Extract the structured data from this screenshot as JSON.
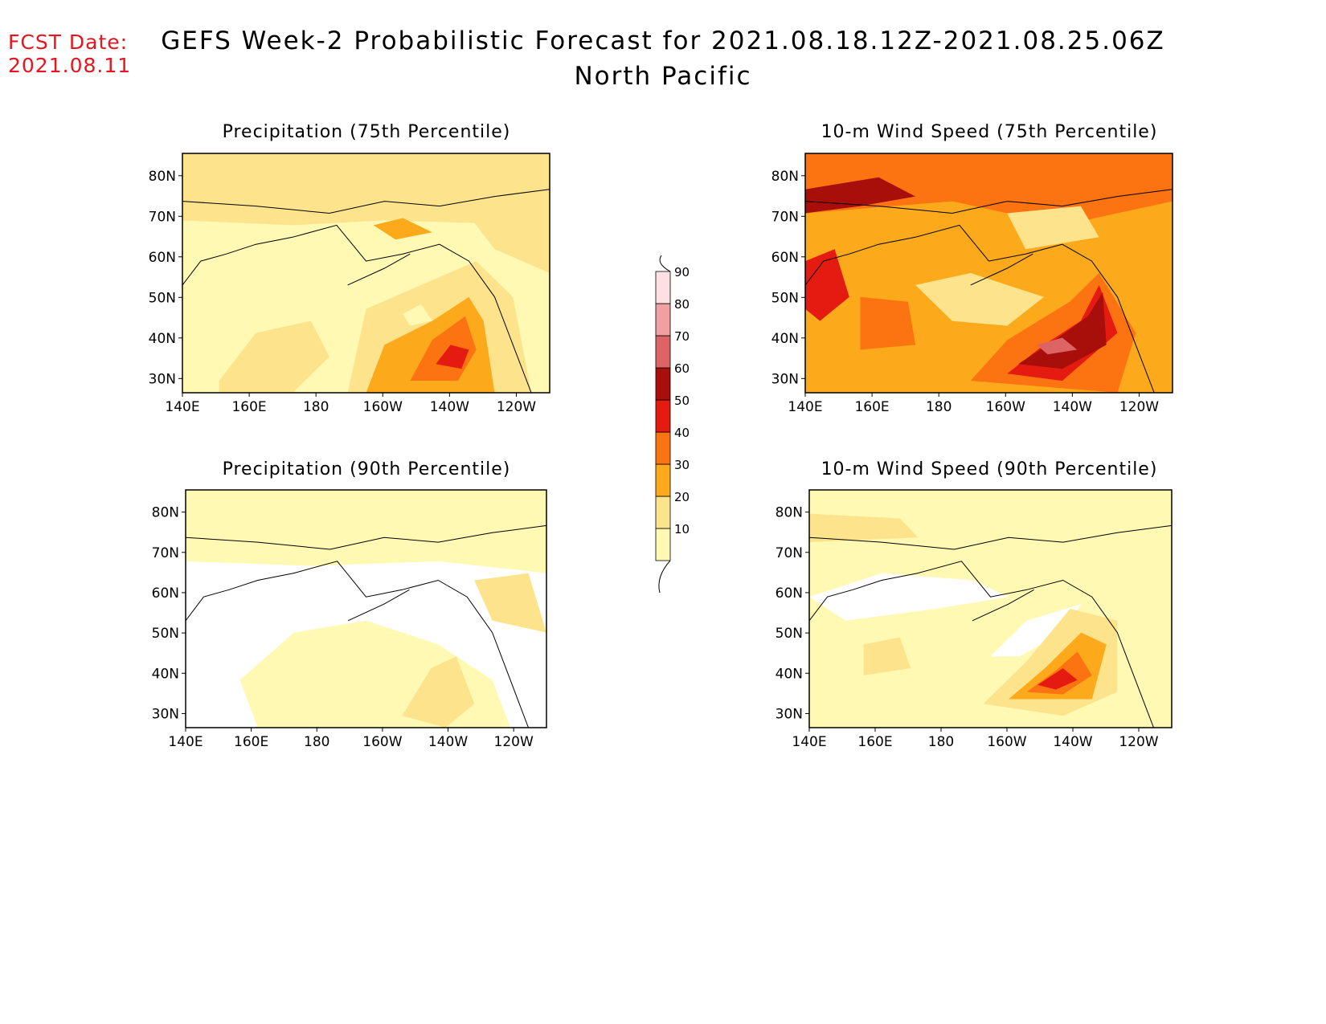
{
  "header": {
    "fcst_label": "FCST Date:",
    "fcst_date": "2021.08.11",
    "title_line1": "GEFS Week-2 Probabilistic Forecast for 2021.08.18.12Z-2021.08.25.06Z",
    "title_line2": "North Pacific"
  },
  "panels": [
    {
      "title": "Precipitation (75th Percentile)",
      "variable": "precipitation",
      "percentile": "75th"
    },
    {
      "title": "10-m Wind Speed (75th Percentile)",
      "variable": "wind",
      "percentile": "75th"
    },
    {
      "title": "Precipitation (90th Percentile)",
      "variable": "precipitation",
      "percentile": "90th"
    },
    {
      "title": "10-m Wind Speed (90th Percentile)",
      "variable": "wind",
      "percentile": "90th"
    }
  ],
  "axes": {
    "lon_ticks": [
      "140E",
      "160E",
      "180",
      "160W",
      "140W",
      "120W"
    ],
    "lat_ticks": [
      "80N",
      "70N",
      "60N",
      "50N",
      "40N",
      "30N"
    ]
  },
  "colorbar": {
    "levels": [
      "10",
      "20",
      "30",
      "40",
      "50",
      "60",
      "70",
      "80",
      "90"
    ],
    "colors": [
      "#fff9b4",
      "#fde48c",
      "#fcaa1c",
      "#fc7412",
      "#e51a10",
      "#a80f0a",
      "#dc6464",
      "#f0a0a0",
      "#fde0e4"
    ]
  }
}
